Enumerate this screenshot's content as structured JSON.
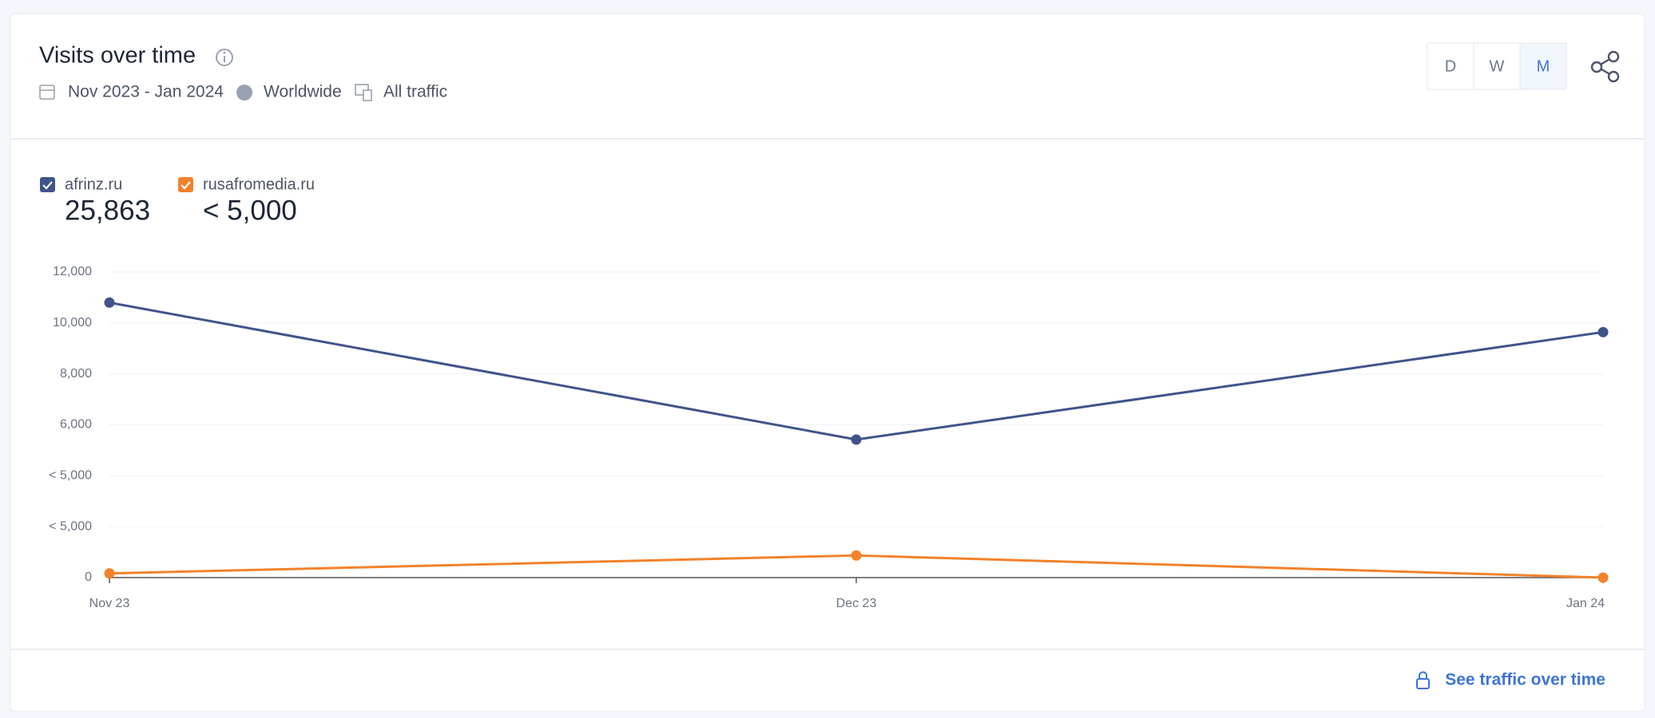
{
  "header": {
    "title": "Visits over time",
    "date_range": "Nov 2023 - Jan 2024",
    "region": "Worldwide",
    "traffic": "All traffic",
    "granularity": [
      "D",
      "W",
      "M"
    ]
  },
  "chart_data": {
    "type": "line",
    "categories": [
      "Nov 23",
      "Dec 23",
      "Jan 24"
    ],
    "series": [
      {
        "name": "afrinz.ru",
        "color": "#3f5489",
        "total": "25,863",
        "values": [
          10800,
          5420,
          9640
        ]
      },
      {
        "name": "rusafromedia.ru",
        "color": "#f2822a",
        "total": "< 5,000",
        "values": [
          165,
          870,
          0
        ]
      }
    ],
    "ylim": [
      0,
      12000
    ],
    "yticks": [
      0,
      {
        "value": 2000,
        "label": "< 5,000"
      },
      {
        "value": 4000,
        "label": "< 5,000"
      },
      {
        "value": 6000,
        "label": "6,000"
      },
      {
        "value": 8000,
        "label": "8,000"
      },
      {
        "value": 10000,
        "label": "10,000"
      },
      {
        "value": 12000,
        "label": "12,000"
      }
    ],
    "grid": true
  },
  "footer": {
    "link": "See traffic over time"
  }
}
